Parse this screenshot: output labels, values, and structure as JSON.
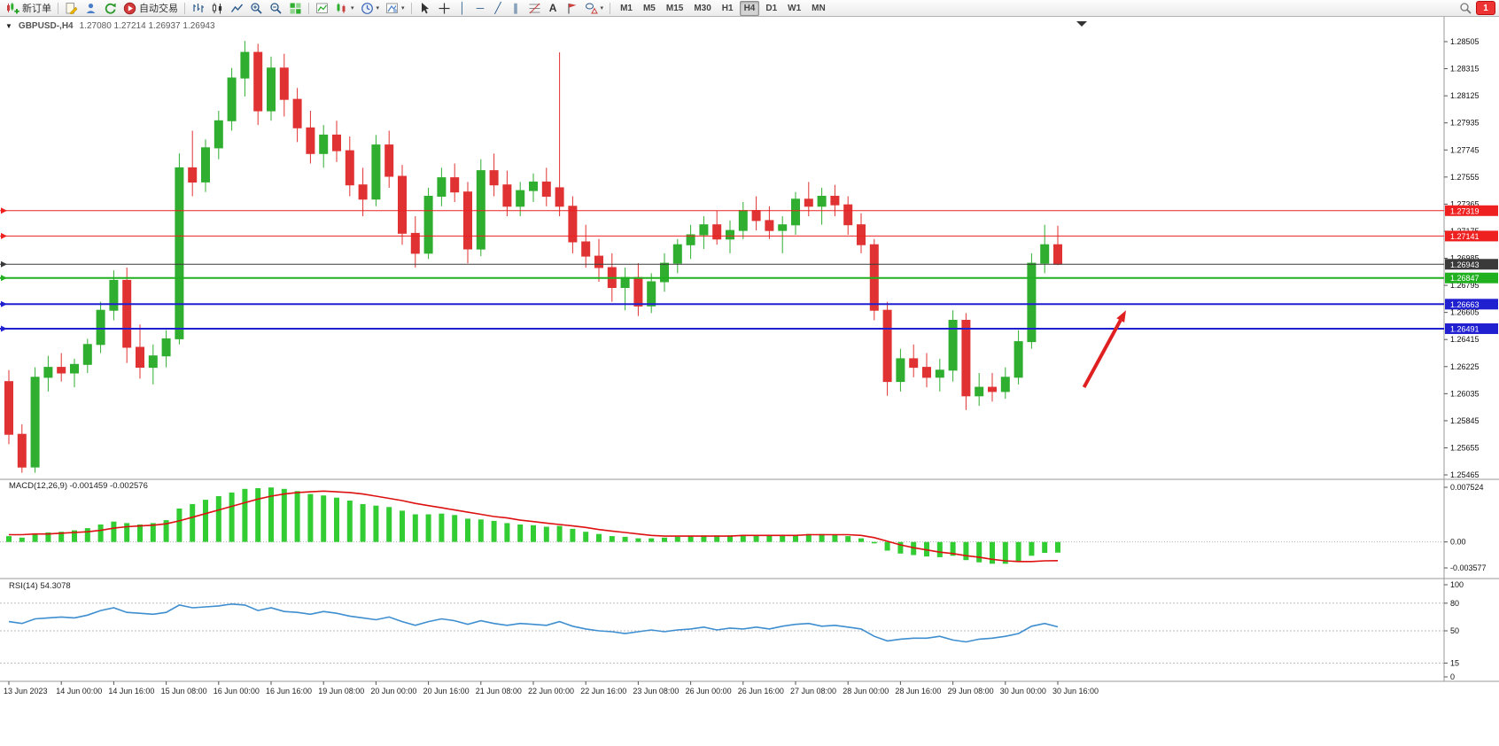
{
  "toolbar": {
    "new_order_label": "新订单",
    "autotrading_label": "自动交易",
    "timeframes": [
      "M1",
      "M5",
      "M15",
      "M30",
      "H1",
      "H4",
      "D1",
      "W1",
      "MN"
    ],
    "active_timeframe": "H4",
    "notification_count": "1",
    "icons": [
      "new-order",
      "mql-editor",
      "profiles",
      "refresh",
      "autotrading",
      "bar-chart-mode",
      "candlestick-mode",
      "line-chart-mode",
      "zoom-in",
      "zoom-out",
      "tile-windows",
      "indicators",
      "objects",
      "periods-clock",
      "templates",
      "cursor",
      "crosshair",
      "vertical-line",
      "horizontal-line",
      "trendline",
      "equidistant-channel",
      "fibonacci",
      "text",
      "arrow-label",
      "shapes",
      "search",
      "notifications"
    ]
  },
  "chart": {
    "symbol_period": "GBPUSD-,H4",
    "ohlc_display": "1.27080 1.27214 1.26937 1.26943"
  },
  "chart_data": {
    "type": "candlestick",
    "symbol": "GBPUSD-",
    "timeframe": "H4",
    "current_ohlc": {
      "open": 1.2708,
      "high": 1.27214,
      "low": 1.26937,
      "close": 1.26943
    },
    "y_axis": {
      "min": 1.25465,
      "max": 1.28505,
      "step": 0.0019,
      "labels": [
        "1.28505",
        "1.28315",
        "1.28125",
        "1.27935",
        "1.27745",
        "1.27555",
        "1.27365",
        "1.27175",
        "1.26985",
        "1.26795",
        "1.26605",
        "1.26415",
        "1.26225",
        "1.26035",
        "1.25845",
        "1.25655",
        "1.25465"
      ]
    },
    "label_every_n_bars": 4,
    "time_labels": [
      "13 Jun 2023",
      "14 Jun 00:00",
      "14 Jun 16:00",
      "15 Jun 08:00",
      "16 Jun 00:00",
      "16 Jun 16:00",
      "19 Jun 08:00",
      "20 Jun 00:00",
      "20 Jun 16:00",
      "21 Jun 08:00",
      "22 Jun 00:00",
      "22 Jun 16:00",
      "23 Jun 08:00",
      "26 Jun 00:00",
      "26 Jun 16:00",
      "27 Jun 08:00",
      "28 Jun 00:00",
      "28 Jun 16:00",
      "29 Jun 08:00",
      "30 Jun 00:00",
      "30 Jun 16:00"
    ],
    "candles": [
      [
        1.2612,
        1.262,
        1.2568,
        1.2575
      ],
      [
        1.2575,
        1.2582,
        1.2548,
        1.2552
      ],
      [
        1.2552,
        1.2622,
        1.2548,
        1.2615
      ],
      [
        1.2615,
        1.263,
        1.2605,
        1.2622
      ],
      [
        1.2622,
        1.2632,
        1.2612,
        1.2618
      ],
      [
        1.2618,
        1.2628,
        1.2608,
        1.2624
      ],
      [
        1.2624,
        1.2642,
        1.2618,
        1.2638
      ],
      [
        1.2638,
        1.2668,
        1.2632,
        1.2662
      ],
      [
        1.2662,
        1.269,
        1.2655,
        1.2683
      ],
      [
        1.2683,
        1.2692,
        1.2625,
        1.2636
      ],
      [
        1.2636,
        1.2652,
        1.2614,
        1.2622
      ],
      [
        1.2622,
        1.2638,
        1.261,
        1.263
      ],
      [
        1.263,
        1.2648,
        1.2622,
        1.2642
      ],
      [
        1.2642,
        1.2772,
        1.2638,
        1.2762
      ],
      [
        1.2762,
        1.2788,
        1.2742,
        1.2752
      ],
      [
        1.2752,
        1.2782,
        1.2745,
        1.2776
      ],
      [
        1.2776,
        1.2802,
        1.2768,
        1.2795
      ],
      [
        1.2795,
        1.2832,
        1.2788,
        1.2825
      ],
      [
        1.2825,
        1.2851,
        1.2812,
        1.2843
      ],
      [
        1.2843,
        1.2849,
        1.2792,
        1.2802
      ],
      [
        1.2802,
        1.284,
        1.2795,
        1.2832
      ],
      [
        1.2832,
        1.2842,
        1.2798,
        1.281
      ],
      [
        1.281,
        1.2818,
        1.278,
        1.279
      ],
      [
        1.279,
        1.2802,
        1.2765,
        1.2772
      ],
      [
        1.2772,
        1.2792,
        1.2762,
        1.2785
      ],
      [
        1.2785,
        1.2795,
        1.2766,
        1.2774
      ],
      [
        1.2774,
        1.2784,
        1.2742,
        1.275
      ],
      [
        1.275,
        1.2762,
        1.2728,
        1.274
      ],
      [
        1.274,
        1.2785,
        1.2735,
        1.2778
      ],
      [
        1.2778,
        1.2788,
        1.2748,
        1.2756
      ],
      [
        1.2756,
        1.2764,
        1.2708,
        1.2716
      ],
      [
        1.2716,
        1.2728,
        1.2692,
        1.2702
      ],
      [
        1.2702,
        1.2748,
        1.2698,
        1.2742
      ],
      [
        1.2742,
        1.2762,
        1.2735,
        1.2755
      ],
      [
        1.2755,
        1.2765,
        1.2738,
        1.2745
      ],
      [
        1.2745,
        1.2752,
        1.2695,
        1.2705
      ],
      [
        1.2705,
        1.2768,
        1.27,
        1.276
      ],
      [
        1.276,
        1.2772,
        1.2742,
        1.275
      ],
      [
        1.275,
        1.276,
        1.2728,
        1.2735
      ],
      [
        1.2735,
        1.2752,
        1.2728,
        1.2746
      ],
      [
        1.2746,
        1.2758,
        1.2738,
        1.2752
      ],
      [
        1.2752,
        1.2762,
        1.2735,
        1.2742
      ],
      [
        1.2748,
        1.2843,
        1.2728,
        1.2735
      ],
      [
        1.2735,
        1.2742,
        1.2702,
        1.271
      ],
      [
        1.271,
        1.2722,
        1.2692,
        1.27
      ],
      [
        1.27,
        1.2712,
        1.2682,
        1.2692
      ],
      [
        1.2692,
        1.2702,
        1.2668,
        1.2678
      ],
      [
        1.2678,
        1.2692,
        1.2662,
        1.2685
      ],
      [
        1.2685,
        1.2695,
        1.2658,
        1.2665
      ],
      [
        1.2665,
        1.2688,
        1.266,
        1.2682
      ],
      [
        1.2682,
        1.2702,
        1.2675,
        1.2695
      ],
      [
        1.2695,
        1.2712,
        1.2688,
        1.2708
      ],
      [
        1.2708,
        1.2722,
        1.2698,
        1.2715
      ],
      [
        1.2715,
        1.2728,
        1.2705,
        1.2722
      ],
      [
        1.2722,
        1.2732,
        1.2708,
        1.2712
      ],
      [
        1.2712,
        1.2725,
        1.2702,
        1.2718
      ],
      [
        1.2718,
        1.2738,
        1.2712,
        1.2732
      ],
      [
        1.2732,
        1.2742,
        1.2718,
        1.2725
      ],
      [
        1.2725,
        1.2735,
        1.2712,
        1.2718
      ],
      [
        1.2718,
        1.2728,
        1.2702,
        1.2722
      ],
      [
        1.2722,
        1.2745,
        1.2715,
        1.274
      ],
      [
        1.274,
        1.2752,
        1.2728,
        1.2735
      ],
      [
        1.2735,
        1.2748,
        1.2722,
        1.2742
      ],
      [
        1.2742,
        1.275,
        1.2728,
        1.2736
      ],
      [
        1.2736,
        1.2742,
        1.2715,
        1.2722
      ],
      [
        1.2722,
        1.273,
        1.2702,
        1.2708
      ],
      [
        1.2708,
        1.2712,
        1.2655,
        1.2662
      ],
      [
        1.2662,
        1.2668,
        1.2602,
        1.2612
      ],
      [
        1.2612,
        1.2635,
        1.2605,
        1.2628
      ],
      [
        1.2628,
        1.2638,
        1.2615,
        1.2622
      ],
      [
        1.2622,
        1.2632,
        1.2608,
        1.2615
      ],
      [
        1.2615,
        1.2628,
        1.2605,
        1.262
      ],
      [
        1.262,
        1.2662,
        1.2612,
        1.2655
      ],
      [
        1.2655,
        1.266,
        1.2592,
        1.2602
      ],
      [
        1.2602,
        1.2618,
        1.2595,
        1.2608
      ],
      [
        1.2608,
        1.2618,
        1.2598,
        1.2605
      ],
      [
        1.2605,
        1.2622,
        1.26,
        1.2615
      ],
      [
        1.2615,
        1.2648,
        1.261,
        1.264
      ],
      [
        1.264,
        1.2702,
        1.2635,
        1.2695
      ],
      [
        1.2695,
        1.2722,
        1.2688,
        1.2708
      ],
      [
        1.2708,
        1.27214,
        1.26937,
        1.26943
      ]
    ],
    "horizontal_lines": [
      {
        "price": 1.27319,
        "label": "1.27319",
        "color": "#ee2020",
        "width": 1,
        "role": "resistance"
      },
      {
        "price": 1.27141,
        "label": "1.27141",
        "color": "#ee2020",
        "width": 1,
        "role": "resistance"
      },
      {
        "price": 1.26943,
        "label": "1.26943",
        "color": "#3a3a3a",
        "width": 1,
        "role": "bid"
      },
      {
        "price": 1.26847,
        "label": "1.26847",
        "color": "#20b020",
        "width": 2,
        "role": "level"
      },
      {
        "price": 1.26663,
        "label": "1.26663",
        "color": "#2020d0",
        "width": 2,
        "role": "support"
      },
      {
        "price": 1.26491,
        "label": "1.26491",
        "color": "#2020d0",
        "width": 2,
        "role": "support"
      }
    ],
    "annotations": [
      {
        "type": "arrow",
        "from_bar": 82,
        "from_price": 1.2608,
        "to_bar": 85.2,
        "to_price": 1.2662,
        "color": "#e02020"
      }
    ],
    "indicators": {
      "macd": {
        "name": "MACD(12,26,9)",
        "values_display": "-0.001459 -0.002576",
        "main_value": -0.001459,
        "signal_value": -0.002576,
        "axis_max": 0.007524,
        "axis_min": -0.003577,
        "axis_labels": [
          "0.007524",
          "0.00",
          "-0.003577"
        ],
        "histogram": [
          0.0008,
          0.0006,
          0.001,
          0.0013,
          0.0014,
          0.0016,
          0.0019,
          0.0024,
          0.0028,
          0.0026,
          0.0024,
          0.0026,
          0.003,
          0.0046,
          0.0052,
          0.0058,
          0.0063,
          0.0068,
          0.0073,
          0.0074,
          0.0075,
          0.0073,
          0.007,
          0.0066,
          0.0064,
          0.0061,
          0.0057,
          0.0052,
          0.005,
          0.0048,
          0.0043,
          0.0038,
          0.0038,
          0.0039,
          0.0037,
          0.0032,
          0.0031,
          0.0029,
          0.0026,
          0.0024,
          0.0023,
          0.0021,
          0.0022,
          0.0018,
          0.0014,
          0.0011,
          0.0008,
          0.0007,
          0.0005,
          0.0005,
          0.0006,
          0.0007,
          0.0008,
          0.0009,
          0.0009,
          0.0009,
          0.001,
          0.001,
          0.0009,
          0.0009,
          0.001,
          0.0011,
          0.0011,
          0.001,
          0.0008,
          0.0005,
          -0.0002,
          -0.0012,
          -0.0016,
          -0.0018,
          -0.002,
          -0.0021,
          -0.0019,
          -0.0025,
          -0.0028,
          -0.003,
          -0.003,
          -0.0027,
          -0.0019,
          -0.0015,
          -0.001459
        ],
        "signal": [
          0.001,
          0.001,
          0.0011,
          0.0011,
          0.0012,
          0.0013,
          0.0014,
          0.0016,
          0.0019,
          0.0021,
          0.0022,
          0.0023,
          0.0025,
          0.0029,
          0.0034,
          0.0039,
          0.0044,
          0.0049,
          0.0054,
          0.0059,
          0.0063,
          0.0066,
          0.0068,
          0.0069,
          0.007,
          0.0069,
          0.0068,
          0.0066,
          0.0063,
          0.006,
          0.0057,
          0.0053,
          0.005,
          0.0047,
          0.0044,
          0.0041,
          0.0038,
          0.0035,
          0.0033,
          0.003,
          0.0028,
          0.0026,
          0.0024,
          0.0022,
          0.002,
          0.0017,
          0.0015,
          0.0013,
          0.0011,
          0.0009,
          0.0008,
          0.0008,
          0.0008,
          0.0008,
          0.0008,
          0.0008,
          0.0009,
          0.0009,
          0.0009,
          0.0009,
          0.0009,
          0.001,
          0.001,
          0.001,
          0.001,
          0.0009,
          0.0006,
          0.0001,
          -0.0004,
          -0.0008,
          -0.0011,
          -0.0014,
          -0.0016,
          -0.0019,
          -0.0021,
          -0.0024,
          -0.0026,
          -0.0027,
          -0.0027,
          -0.0026,
          -0.002576
        ]
      },
      "rsi": {
        "name": "RSI(14)",
        "value_display": "54.3078",
        "value": 54.3078,
        "levels": [
          80,
          50,
          15
        ],
        "axis_labels": [
          "100",
          "80",
          "50",
          "15",
          "0"
        ],
        "values": [
          60,
          58,
          63,
          64,
          65,
          64,
          67,
          72,
          75,
          70,
          69,
          68,
          70,
          78,
          75,
          76,
          77,
          79,
          78,
          72,
          75,
          71,
          70,
          68,
          71,
          69,
          66,
          64,
          62,
          65,
          60,
          56,
          60,
          63,
          61,
          57,
          61,
          58,
          56,
          58,
          57,
          56,
          60,
          55,
          52,
          50,
          49,
          47,
          49,
          51,
          49,
          51,
          52,
          54,
          51,
          53,
          52,
          54,
          52,
          55,
          57,
          58,
          55,
          56,
          54,
          52,
          44,
          39,
          41,
          42,
          42,
          44,
          40,
          38,
          41,
          42,
          44,
          47,
          55,
          58,
          54.3078
        ]
      }
    },
    "colors": {
      "up": "#2fae2f",
      "down": "#e03232",
      "macd_histogram": "#32cd32",
      "macd_signal": "#dd1111",
      "rsi_line": "#3e8ed0",
      "bid_line": "#3a3a3a",
      "resistance_line": "#ee2020",
      "support_line": "#2020d0",
      "mid_line": "#20b020",
      "arrow": "#e02020"
    }
  }
}
